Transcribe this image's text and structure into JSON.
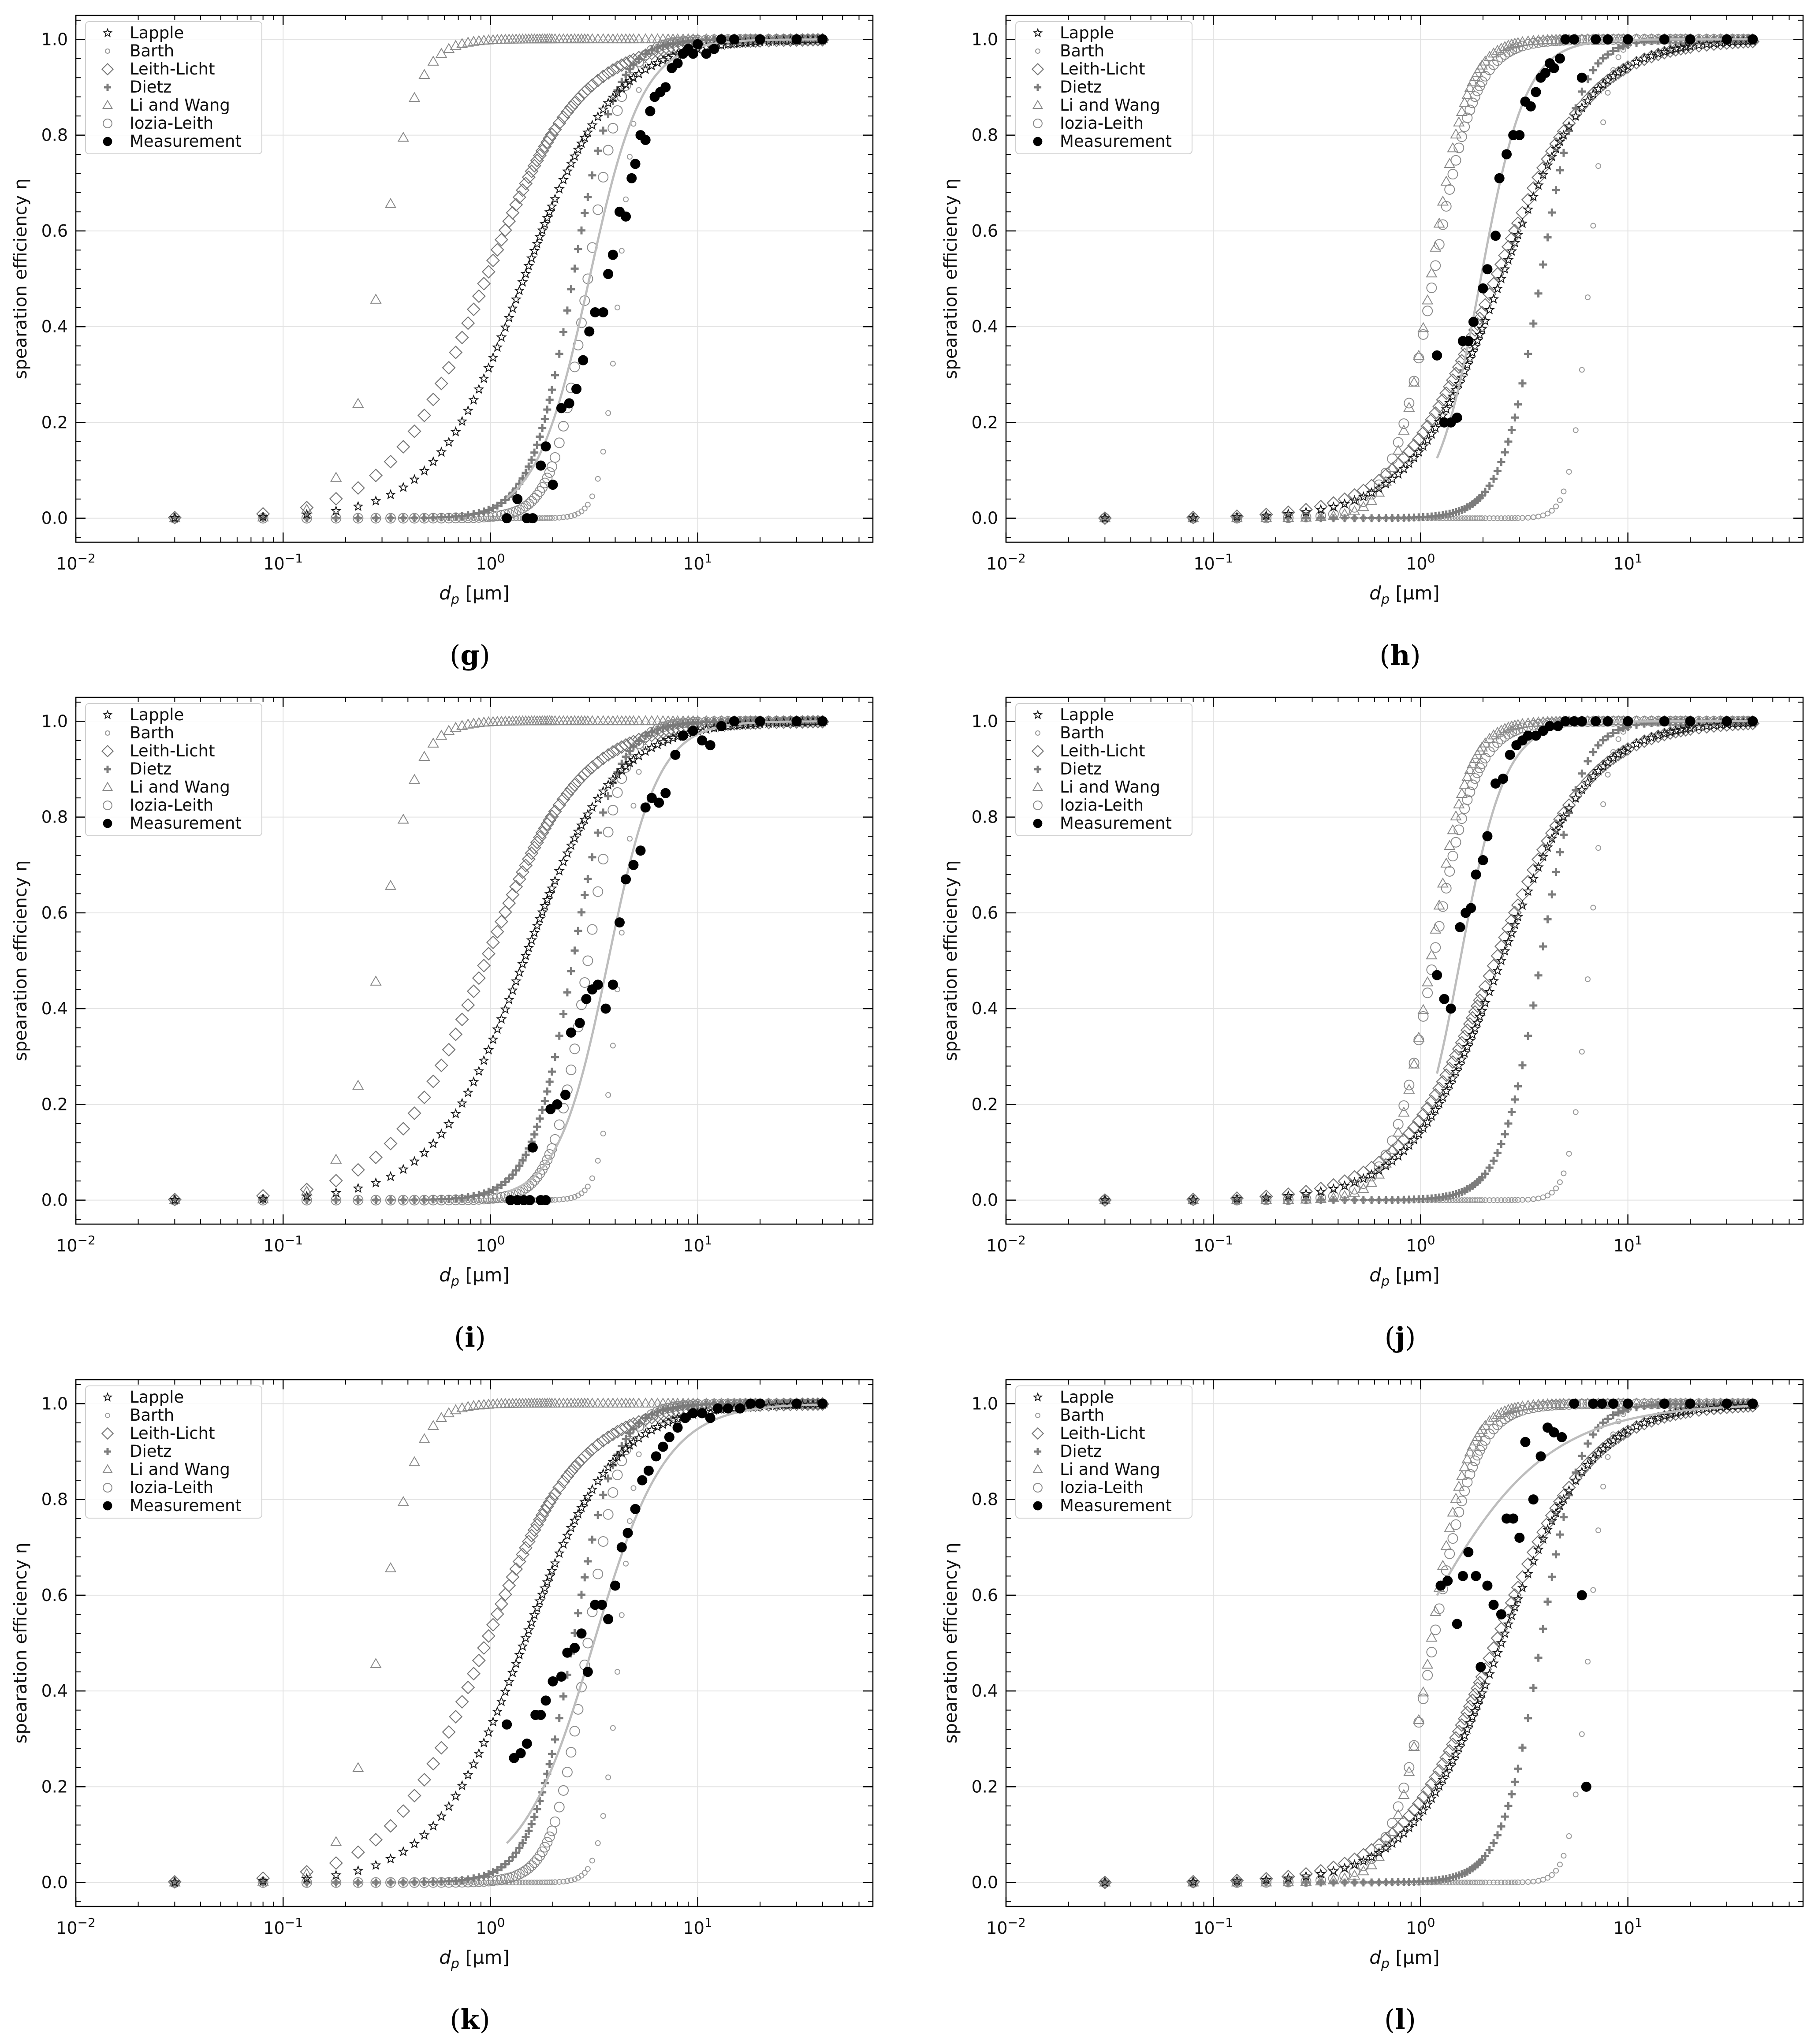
{
  "figure": {
    "panels": [
      {
        "label": "(g)",
        "measurement": {
          "x": [
            1.2,
            1.35,
            1.5,
            1.6,
            1.75,
            1.85,
            2.0,
            2.2,
            2.4,
            2.6,
            2.8,
            3.0,
            3.2,
            3.5,
            3.7,
            3.9,
            4.2,
            4.5,
            4.8,
            5.0,
            5.3,
            5.6,
            5.9,
            6.2,
            6.6,
            7.0,
            7.5,
            8.0,
            8.5,
            9.0,
            9.5,
            10.0,
            11.0,
            12.0,
            13.0,
            15.0,
            20.0,
            30.0,
            40.0
          ],
          "y": [
            0.0,
            0.04,
            0.0,
            0.0,
            0.11,
            0.15,
            0.07,
            0.23,
            0.24,
            0.27,
            0.33,
            0.39,
            0.43,
            0.43,
            0.51,
            0.55,
            0.64,
            0.63,
            0.71,
            0.74,
            0.8,
            0.79,
            0.85,
            0.88,
            0.89,
            0.9,
            0.94,
            0.95,
            0.97,
            0.98,
            0.97,
            0.99,
            0.97,
            0.98,
            1.0,
            1.0,
            1.0,
            1.0,
            1.0
          ]
        },
        "fit": {
          "d50": 3.0,
          "k": 3.4,
          "xmin": 1.2,
          "xmax": 40
        },
        "models": {
          "lapple_d50": 1.45,
          "lapple_k": 2.0,
          "leith_d50": 0.95,
          "leith_k": 1.9,
          "dietz_d50": 2.5,
          "dietz_k": 4.3,
          "li_d50": 0.29,
          "li_k": 5.0,
          "iozia_d50": 2.95,
          "iozia_k": 5.3,
          "barth_d50": 4.2,
          "barth_k": 10
        }
      },
      {
        "label": "(h)",
        "measurement": {
          "x": [
            1.2,
            1.3,
            1.4,
            1.5,
            1.6,
            1.7,
            1.8,
            2.0,
            2.1,
            2.3,
            2.4,
            2.6,
            2.8,
            3.0,
            3.2,
            3.4,
            3.6,
            3.8,
            4.0,
            4.2,
            4.4,
            4.7,
            5.0,
            5.5,
            6.0,
            7.0,
            8.0,
            10.0,
            15.0,
            20.0,
            30.0,
            40.0
          ],
          "y": [
            0.34,
            0.2,
            0.2,
            0.21,
            0.37,
            0.37,
            0.41,
            0.48,
            0.52,
            0.59,
            0.71,
            0.76,
            0.8,
            0.8,
            0.87,
            0.86,
            0.89,
            0.92,
            0.93,
            0.95,
            0.94,
            0.96,
            1.0,
            1.0,
            0.92,
            1.0,
            1.0,
            1.0,
            1.0,
            1.0,
            1.0,
            1.0
          ]
        },
        "fit": {
          "d50": 1.95,
          "k": 4.0,
          "xmin": 1.2,
          "xmax": 40
        },
        "models": {
          "lapple_d50": 2.45,
          "lapple_k": 2.0,
          "leith_d50": 2.3,
          "leith_k": 1.9,
          "dietz_d50": 3.8,
          "dietz_k": 4.6,
          "li_d50": 1.12,
          "li_k": 5.0,
          "iozia_d50": 1.15,
          "iozia_k": 4.3,
          "barth_d50": 6.5,
          "barth_k": 10
        }
      },
      {
        "label": "(i)",
        "measurement": {
          "x": [
            1.25,
            1.35,
            1.45,
            1.55,
            1.6,
            1.75,
            1.85,
            1.95,
            2.1,
            2.3,
            2.45,
            2.7,
            2.9,
            3.1,
            3.3,
            3.6,
            3.9,
            4.2,
            4.5,
            4.9,
            5.3,
            5.6,
            6.0,
            6.5,
            7.0,
            7.8,
            8.5,
            9.5,
            10.5,
            11.5,
            13.0,
            15.0,
            20.0,
            30.0,
            40.0
          ],
          "y": [
            0.0,
            0.0,
            0.0,
            0.0,
            0.11,
            0.0,
            0.0,
            0.19,
            0.2,
            0.22,
            0.35,
            0.37,
            0.42,
            0.44,
            0.45,
            0.4,
            0.45,
            0.58,
            0.67,
            0.7,
            0.73,
            0.82,
            0.84,
            0.83,
            0.85,
            0.93,
            0.97,
            0.98,
            0.96,
            0.95,
            0.99,
            1.0,
            1.0,
            1.0,
            1.0
          ]
        },
        "fit": {
          "d50": 3.7,
          "k": 3.6,
          "xmin": 1.2,
          "xmax": 40
        },
        "models": {
          "lapple_d50": 1.45,
          "lapple_k": 2.0,
          "leith_d50": 0.95,
          "leith_k": 1.9,
          "dietz_d50": 2.5,
          "dietz_k": 4.3,
          "li_d50": 0.29,
          "li_k": 5.0,
          "iozia_d50": 2.95,
          "iozia_k": 5.3,
          "barth_d50": 4.2,
          "barth_k": 10
        }
      },
      {
        "label": "(j)",
        "measurement": {
          "x": [
            1.2,
            1.3,
            1.4,
            1.55,
            1.65,
            1.75,
            1.85,
            2.0,
            2.1,
            2.3,
            2.5,
            2.7,
            2.9,
            3.1,
            3.3,
            3.6,
            3.9,
            4.2,
            4.6,
            5.0,
            5.5,
            6.0,
            7.0,
            8.0,
            10.0,
            15.0,
            20.0,
            30.0,
            40.0
          ],
          "y": [
            0.47,
            0.42,
            0.4,
            0.57,
            0.6,
            0.61,
            0.68,
            0.71,
            0.76,
            0.87,
            0.88,
            0.93,
            0.95,
            0.96,
            0.97,
            0.97,
            0.98,
            0.99,
            0.99,
            1.0,
            1.0,
            1.0,
            1.0,
            1.0,
            1.0,
            1.0,
            1.0,
            1.0,
            1.0
          ]
        },
        "fit": {
          "d50": 1.55,
          "k": 4.0,
          "xmin": 1.2,
          "xmax": 40
        },
        "models": {
          "lapple_d50": 2.45,
          "lapple_k": 2.0,
          "leith_d50": 2.3,
          "leith_k": 1.9,
          "dietz_d50": 3.8,
          "dietz_k": 4.6,
          "li_d50": 1.12,
          "li_k": 5.0,
          "iozia_d50": 1.15,
          "iozia_k": 4.3,
          "barth_d50": 6.5,
          "barth_k": 10
        }
      },
      {
        "label": "(k)",
        "measurement": {
          "x": [
            1.2,
            1.3,
            1.4,
            1.5,
            1.65,
            1.75,
            1.85,
            2.0,
            2.2,
            2.35,
            2.55,
            2.75,
            2.95,
            3.2,
            3.45,
            3.7,
            4.0,
            4.3,
            4.6,
            5.0,
            5.4,
            5.8,
            6.3,
            6.8,
            7.3,
            8.0,
            8.7,
            9.5,
            10.5,
            11.5,
            12.5,
            14.0,
            16.0,
            18.0,
            20.0,
            30.0,
            40.0
          ],
          "y": [
            0.33,
            0.26,
            0.27,
            0.29,
            0.35,
            0.35,
            0.38,
            0.42,
            0.43,
            0.48,
            0.49,
            0.52,
            0.44,
            0.58,
            0.58,
            0.55,
            0.62,
            0.7,
            0.73,
            0.78,
            0.84,
            0.86,
            0.89,
            0.91,
            0.93,
            0.95,
            0.97,
            0.98,
            0.98,
            0.97,
            0.99,
            0.99,
            0.99,
            1.0,
            1.0,
            1.0,
            1.0
          ]
        },
        "fit": {
          "d50": 3.15,
          "k": 2.5,
          "xmin": 1.2,
          "xmax": 40
        },
        "models": {
          "lapple_d50": 1.45,
          "lapple_k": 2.0,
          "leith_d50": 0.95,
          "leith_k": 1.9,
          "dietz_d50": 2.5,
          "dietz_k": 4.3,
          "li_d50": 0.29,
          "li_k": 5.0,
          "iozia_d50": 2.95,
          "iozia_k": 5.3,
          "barth_d50": 4.2,
          "barth_k": 10
        }
      },
      {
        "label": "(l)",
        "measurement": {
          "x": [
            1.25,
            1.35,
            1.5,
            1.6,
            1.7,
            1.85,
            1.95,
            2.1,
            2.25,
            2.45,
            2.6,
            2.8,
            3.0,
            3.2,
            3.5,
            3.8,
            4.1,
            4.4,
            4.8,
            5.5,
            6.0,
            6.3,
            6.8,
            7.5,
            8.5,
            10.0,
            15.0,
            20.0,
            30.0,
            40.0
          ],
          "y": [
            0.62,
            0.63,
            0.54,
            0.64,
            0.69,
            0.64,
            0.45,
            0.62,
            0.58,
            0.56,
            0.76,
            0.76,
            0.72,
            0.92,
            0.8,
            0.89,
            0.95,
            0.94,
            0.93,
            1.0,
            0.6,
            0.2,
            1.0,
            1.0,
            1.0,
            1.0,
            1.0,
            1.0,
            1.0,
            1.0
          ]
        },
        "fit": {
          "d50": 0.9,
          "k": 1.4,
          "xmin": 1.2,
          "xmax": 40
        },
        "models": {
          "lapple_d50": 2.45,
          "lapple_k": 2.0,
          "leith_d50": 2.3,
          "leith_k": 1.9,
          "dietz_d50": 3.8,
          "dietz_k": 4.6,
          "li_d50": 1.12,
          "li_k": 5.0,
          "iozia_d50": 1.15,
          "iozia_k": 4.3,
          "barth_d50": 6.5,
          "barth_k": 10
        }
      }
    ]
  },
  "chart_data": {
    "type": "scatter",
    "title": "",
    "xlabel_main": "d",
    "xlabel_sub": "p",
    "xlabel_unit": " [µm]",
    "ylabel": "spearation efficiency η",
    "xscale": "log",
    "xlim": [
      0.01,
      70
    ],
    "ylim": [
      -0.05,
      1.05
    ],
    "xtick_base": "10",
    "xtick_exponents": [
      "−2",
      "−1",
      "0",
      "1"
    ],
    "ytick_labels": [
      "0.0",
      "0.2",
      "0.4",
      "0.6",
      "0.8",
      "1.0"
    ],
    "legend_location": "upper-left",
    "series": [
      {
        "name": "Lapple",
        "marker": "star",
        "color": "#111111"
      },
      {
        "name": "Barth",
        "marker": "small-circle",
        "color": "#999999"
      },
      {
        "name": "Leith-Licht",
        "marker": "diamond",
        "color": "#777777"
      },
      {
        "name": "Dietz",
        "marker": "plus",
        "color": "#7a7a7a"
      },
      {
        "name": "Li and Wang",
        "marker": "triangle",
        "color": "#8c8c8c"
      },
      {
        "name": "Iozia-Leith",
        "marker": "circle",
        "color": "#8c8c8c"
      },
      {
        "name": "Measurement",
        "marker": "filled-circle",
        "color": "#000000"
      }
    ],
    "common_dp_grid": [
      0.03,
      0.08,
      0.13,
      0.18,
      0.23,
      0.28,
      0.33,
      0.38,
      0.43,
      0.48,
      0.53,
      0.58,
      0.63,
      0.68,
      0.73,
      0.78,
      0.83,
      0.88,
      0.93,
      0.98,
      1.03,
      1.08,
      1.13,
      1.18,
      1.23,
      1.28,
      1.33,
      1.38,
      1.43,
      1.48,
      1.53,
      1.58,
      1.63,
      1.68,
      1.73,
      1.78,
      1.83,
      1.88,
      1.93,
      1.98,
      2.05,
      2.15,
      2.25,
      2.35,
      2.45,
      2.55,
      2.65,
      2.75,
      2.85,
      2.95,
      3.1,
      3.3,
      3.5,
      3.7,
      3.9,
      4.1,
      4.3,
      4.5,
      4.7,
      4.9,
      5.2,
      5.6,
      6.0,
      6.4,
      6.8,
      7.2,
      7.6,
      8.0,
      8.5,
      9.0,
      9.5,
      10.0,
      11.0,
      12.0,
      13.0,
      14.0,
      15.0,
      16.0,
      17.0,
      18.0,
      19.0,
      20.0,
      22.0,
      24.0,
      26.0,
      28.0,
      30.0,
      32.0,
      34.0,
      36.0,
      38.0,
      40.0
    ]
  }
}
